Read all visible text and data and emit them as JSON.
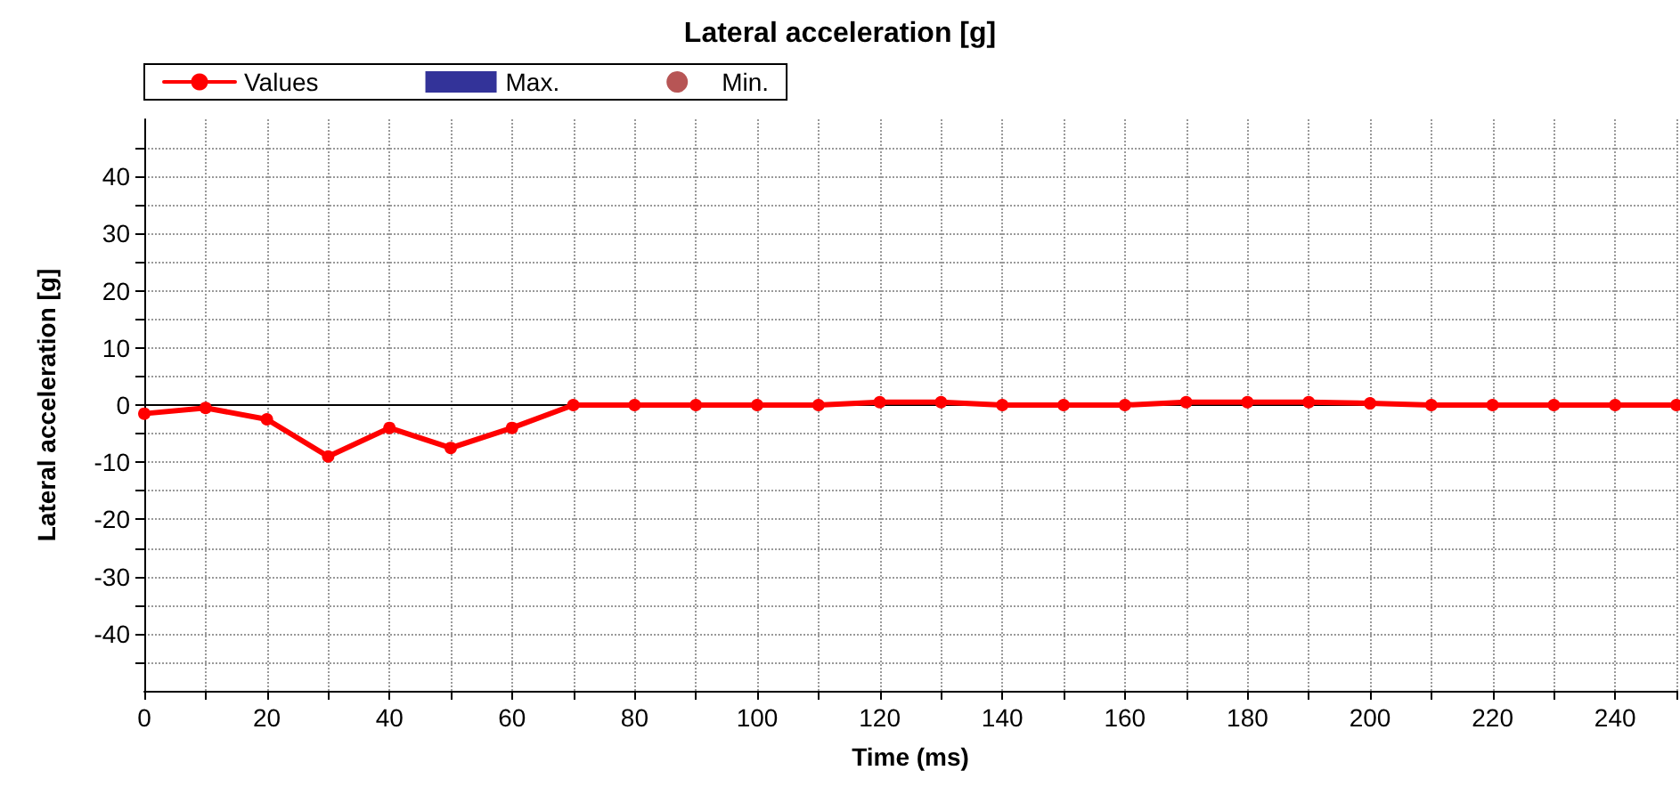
{
  "chart_data": {
    "type": "line",
    "title": "Lateral acceleration [g]",
    "xlabel": "Time (ms)",
    "ylabel": "Lateral acceleration [g]",
    "x": [
      0,
      10,
      20,
      30,
      40,
      50,
      60,
      70,
      80,
      90,
      100,
      110,
      120,
      130,
      140,
      150,
      160,
      170,
      180,
      190,
      200,
      210,
      220,
      230,
      240,
      250
    ],
    "series": [
      {
        "name": "Values",
        "color": "#ff0000",
        "marker": "circle",
        "values": [
          -1.5,
          -0.5,
          -2.5,
          -9,
          -4,
          -7.5,
          -4,
          0,
          0,
          0,
          0,
          0,
          0.5,
          0.5,
          0,
          0,
          0,
          0.5,
          0.5,
          0.5,
          0.3,
          0,
          0,
          0,
          0,
          0
        ]
      },
      {
        "name": "Max.",
        "type": "scatter",
        "color": "#000080",
        "marker": "square",
        "values": [
          null,
          null,
          null,
          null,
          null,
          null,
          null,
          null,
          null,
          null,
          null,
          null,
          null,
          null,
          null,
          null,
          null,
          null,
          null,
          null,
          null,
          null,
          null,
          null,
          null,
          null
        ]
      },
      {
        "name": "Min.",
        "type": "scatter",
        "color": "#a52a2a",
        "marker": "circle",
        "values": [
          null,
          null,
          null,
          null,
          null,
          null,
          null,
          null,
          null,
          null,
          null,
          null,
          null,
          null,
          null,
          null,
          null,
          null,
          null,
          null,
          null,
          null,
          null,
          null,
          null,
          null
        ]
      }
    ],
    "xlim": [
      0,
      250
    ],
    "xticks": [
      0,
      {
        "value": 10,
        "label": null
      },
      20,
      {
        "value": 30,
        "label": null
      },
      40,
      {
        "value": 50,
        "label": null
      },
      60,
      {
        "value": 70,
        "label": null
      },
      80,
      {
        "value": 90,
        "label": null
      },
      100,
      {
        "value": 110,
        "label": null
      },
      120,
      {
        "value": 130,
        "label": null
      },
      140,
      {
        "value": 150,
        "label": null
      },
      160,
      {
        "value": 170,
        "label": null
      },
      180,
      {
        "value": 190,
        "label": null
      },
      200,
      {
        "value": 210,
        "label": null
      },
      220,
      {
        "value": 230,
        "label": null
      },
      240,
      {
        "value": 250,
        "label": null
      }
    ],
    "ylim": [
      -50,
      50
    ],
    "yticks": [
      {
        "value": -45,
        "label": null
      },
      -40,
      {
        "value": -35,
        "label": null
      },
      -30,
      {
        "value": -25,
        "label": null
      },
      -20,
      {
        "value": -15,
        "label": null
      },
      -10,
      {
        "value": -5,
        "label": null
      },
      0,
      {
        "value": 5,
        "label": null
      },
      10,
      {
        "value": 15,
        "label": null
      },
      20,
      {
        "value": 25,
        "label": null
      },
      30,
      {
        "value": 35,
        "label": null
      },
      40,
      {
        "value": 45,
        "label": null
      }
    ],
    "ref_lines": [
      {
        "axis": "y",
        "value": 0,
        "color": "#000000",
        "line_style": "solid"
      }
    ],
    "grid": true,
    "legend": "top left"
  }
}
